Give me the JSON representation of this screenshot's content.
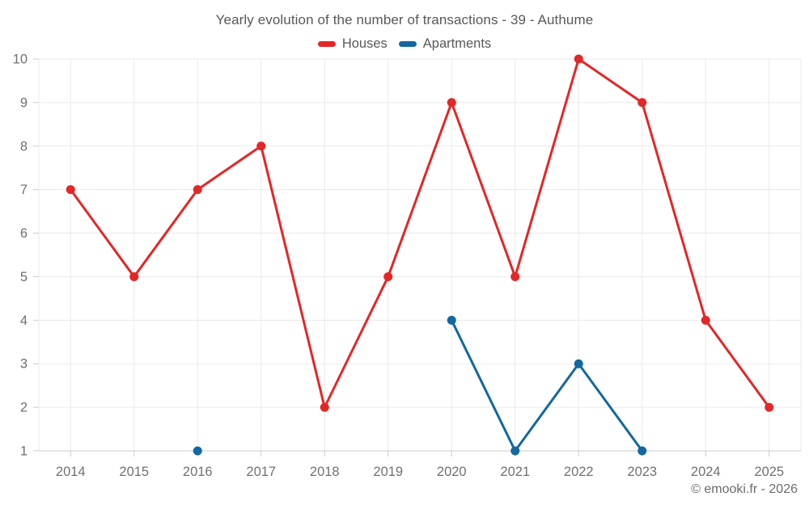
{
  "header": {
    "title": "Yearly evolution of the number of transactions - 39 - Authume"
  },
  "legend": {
    "items": [
      {
        "label": "Houses",
        "color": "#e32726"
      },
      {
        "label": "Apartments",
        "color": "#1268a0"
      }
    ]
  },
  "footer": {
    "credit": "© emooki.fr - 2026"
  },
  "chart_data": {
    "type": "line",
    "title": "Yearly evolution of the number of transactions - 39 - Authume",
    "categories": [
      "2014",
      "2015",
      "2016",
      "2017",
      "2018",
      "2019",
      "2020",
      "2021",
      "2022",
      "2023",
      "2024",
      "2025"
    ],
    "series": [
      {
        "name": "Houses",
        "color": "#e32726",
        "values": [
          7,
          5,
          7,
          8,
          2,
          5,
          9,
          5,
          10,
          9,
          4,
          2
        ]
      },
      {
        "name": "Apartments",
        "color": "#1268a0",
        "values": [
          null,
          null,
          1,
          null,
          null,
          null,
          4,
          1,
          3,
          1,
          null,
          null
        ]
      }
    ],
    "xlabel": "",
    "ylabel": "",
    "ylim": [
      1,
      10
    ],
    "y_ticks": [
      1,
      2,
      3,
      4,
      5,
      6,
      7,
      8,
      9,
      10
    ],
    "grid": true,
    "legend_position": "top",
    "marker_radius": 5.5,
    "line_width": 3
  },
  "style": {
    "grid_color": "#eaeaea",
    "axis_line_color": "#cccccc",
    "tick_color": "#cccccc",
    "axis_label_color": "#707070"
  }
}
